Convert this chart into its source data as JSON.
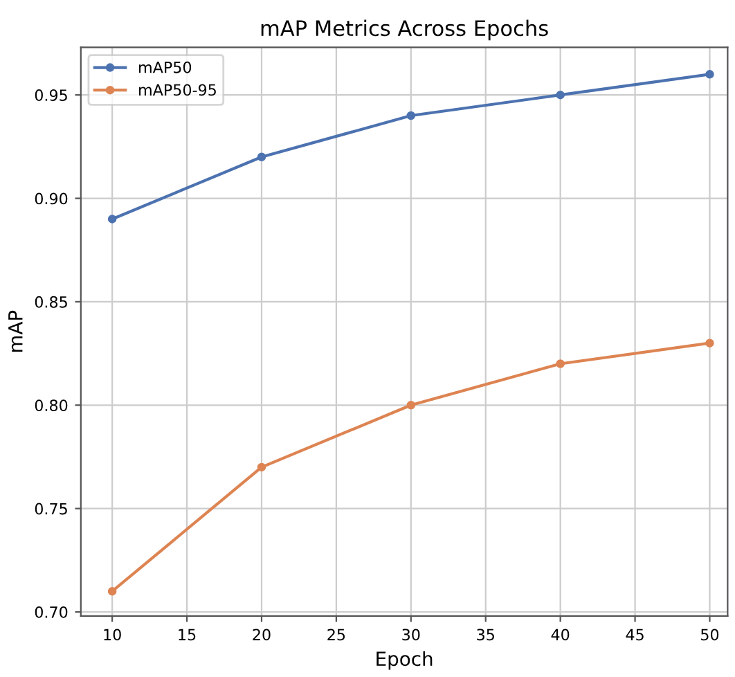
{
  "chart_data": {
    "type": "line",
    "title": "mAP Metrics Across Epochs",
    "xlabel": "Epoch",
    "ylabel": "mAP",
    "x": [
      10,
      20,
      30,
      40,
      50
    ],
    "series": [
      {
        "name": "mAP50",
        "color": "#4c72b0",
        "values": [
          0.89,
          0.92,
          0.94,
          0.95,
          0.96
        ]
      },
      {
        "name": "mAP50-95",
        "color": "#dd8452",
        "values": [
          0.71,
          0.77,
          0.8,
          0.82,
          0.83
        ]
      }
    ],
    "xlim": [
      7.9,
      51.2
    ],
    "xticks": [
      10,
      15,
      20,
      25,
      30,
      35,
      40,
      45,
      50
    ],
    "ylim": [
      0.698,
      0.973
    ],
    "yticks": [
      {
        "value": 0.7,
        "label": "0.70"
      },
      0.75,
      {
        "value": 0.8,
        "label": "0.80"
      },
      0.85,
      {
        "value": 0.9,
        "label": "0.90"
      },
      0.95
    ],
    "grid": true,
    "legend": "top left",
    "marker": "circle",
    "line_style": "solid"
  }
}
